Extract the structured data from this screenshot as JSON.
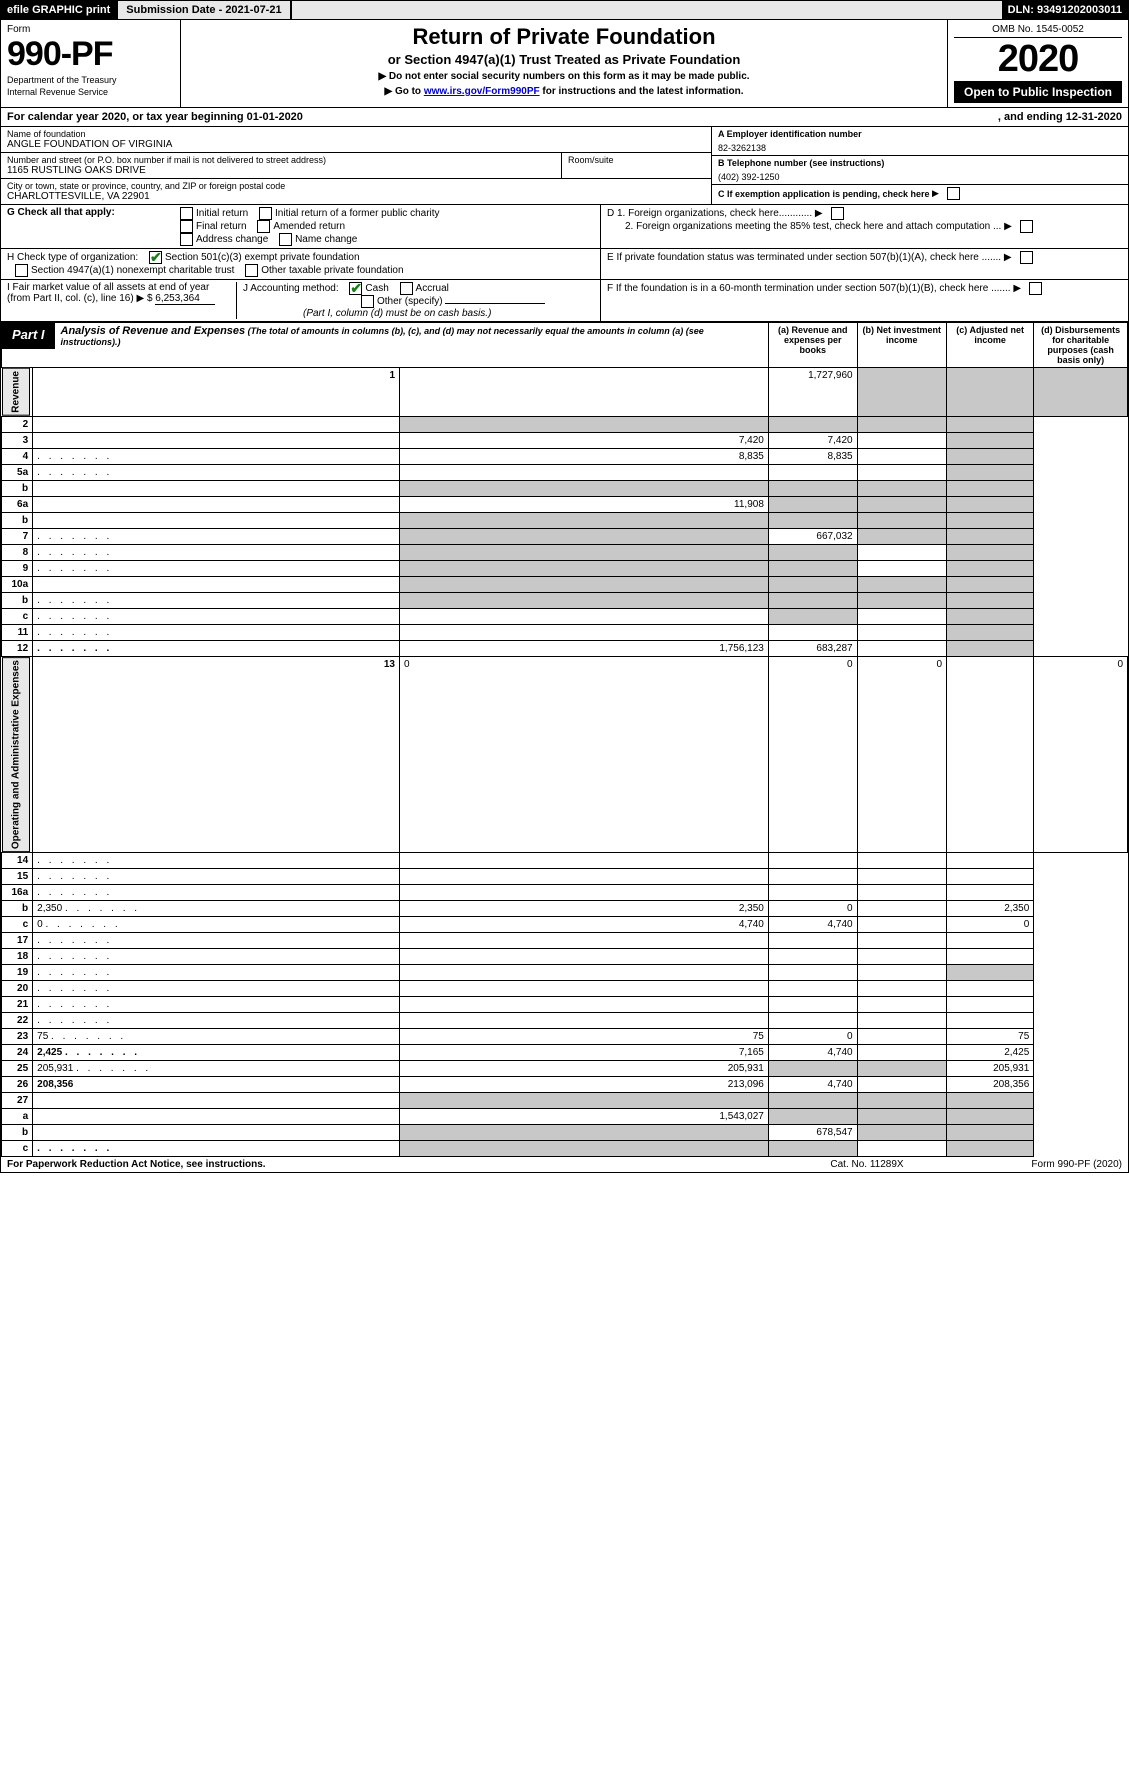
{
  "topbar": {
    "efile": "efile GRAPHIC print",
    "subdate_label": "Submission Date - 2021-07-21",
    "dln": "DLN: 93491202003011"
  },
  "header": {
    "form_word": "Form",
    "form_num": "990-PF",
    "dept1": "Department of the Treasury",
    "dept2": "Internal Revenue Service",
    "title": "Return of Private Foundation",
    "subtitle": "or Section 4947(a)(1) Trust Treated as Private Foundation",
    "notice1": "▶ Do not enter social security numbers on this form as it may be made public.",
    "notice2_pre": "▶ Go to ",
    "notice2_link": "www.irs.gov/Form990PF",
    "notice2_post": " for instructions and the latest information.",
    "omb": "OMB No. 1545-0052",
    "year": "2020",
    "openpub": "Open to Public Inspection"
  },
  "cal": {
    "pre": "For calendar year 2020, or tax year beginning 01-01-2020",
    "end": ", and ending 12-31-2020"
  },
  "name": {
    "label": "Name of foundation",
    "val": "ANGLE FOUNDATION OF VIRGINIA",
    "addr_label": "Number and street (or P.O. box number if mail is not delivered to street address)",
    "addr_val": "1165 RUSTLING OAKS DRIVE",
    "room_label": "Room/suite",
    "city_label": "City or town, state or province, country, and ZIP or foreign postal code",
    "city_val": "CHARLOTTESVILLE, VA  22901"
  },
  "right": {
    "a_label": "A Employer identification number",
    "a_val": "82-3262138",
    "b_label": "B Telephone number (see instructions)",
    "b_val": "(402) 392-1250",
    "c_label": "C If exemption application is pending, check here",
    "d1": "D 1. Foreign organizations, check here............",
    "d2": "2. Foreign organizations meeting the 85% test, check here and attach computation ...",
    "e": "E  If private foundation status was terminated under section 507(b)(1)(A), check here .......",
    "f": "F  If the foundation is in a 60-month termination under section 507(b)(1)(B), check here ......."
  },
  "g": {
    "label": "G Check all that apply:",
    "opts": [
      "Initial return",
      "Initial return of a former public charity",
      "Final return",
      "Amended return",
      "Address change",
      "Name change"
    ]
  },
  "h": {
    "label": "H Check type of organization:",
    "o1": "Section 501(c)(3) exempt private foundation",
    "o2": "Section 4947(a)(1) nonexempt charitable trust",
    "o3": "Other taxable private foundation"
  },
  "i": {
    "label": "I Fair market value of all assets at end of year (from Part II, col. (c), line 16) ▶ $ ",
    "val": "6,253,364"
  },
  "j": {
    "label": "J Accounting method:",
    "o1": "Cash",
    "o2": "Accrual",
    "o3": "Other (specify)",
    "note": "(Part I, column (d) must be on cash basis.)"
  },
  "part1": {
    "tag": "Part I",
    "title": "Analysis of Revenue and Expenses",
    "sub": " (The total of amounts in columns (b), (c), and (d) may not necessarily equal the amounts in column (a) (see instructions).)",
    "col_a": "(a)   Revenue and expenses per books",
    "col_b": "(b)  Net investment income",
    "col_c": "(c)  Adjusted net income",
    "col_d": "(d)  Disbursements for charitable purposes (cash basis only)"
  },
  "sides": {
    "rev": "Revenue",
    "exp": "Operating and Administrative Expenses"
  },
  "rows": [
    {
      "n": "1",
      "d": "",
      "a": "1,727,960",
      "b": "",
      "c": "",
      "sb": true,
      "sc": true,
      "sd": true
    },
    {
      "n": "2",
      "d": "",
      "a": "",
      "b": "",
      "c": "",
      "sa": true,
      "sb": true,
      "sc": true,
      "sd": true,
      "dots6": true
    },
    {
      "n": "3",
      "d": "",
      "a": "7,420",
      "b": "7,420",
      "c": "",
      "sd": true
    },
    {
      "n": "4",
      "d": "",
      "a": "8,835",
      "b": "8,835",
      "c": "",
      "dots": true,
      "sd": true
    },
    {
      "n": "5a",
      "d": "",
      "a": "",
      "b": "",
      "c": "",
      "dots": true,
      "sd": true
    },
    {
      "n": "b",
      "d": "",
      "a": "",
      "b": "",
      "c": "",
      "sa": true,
      "sb": true,
      "sc": true,
      "sd": true,
      "blank": true
    },
    {
      "n": "6a",
      "d": "",
      "a": "11,908",
      "b": "",
      "c": "",
      "sb": true,
      "sc": true,
      "sd": true
    },
    {
      "n": "b",
      "d": "",
      "a": "",
      "b": "",
      "c": "",
      "sa": true,
      "sb": true,
      "sc": true,
      "sd": true
    },
    {
      "n": "7",
      "d": "",
      "a": "",
      "b": "667,032",
      "c": "",
      "sa": true,
      "sc": true,
      "sd": true,
      "dots": true
    },
    {
      "n": "8",
      "d": "",
      "a": "",
      "b": "",
      "c": "",
      "dots": true,
      "sa": true,
      "sb": true,
      "sd": true
    },
    {
      "n": "9",
      "d": "",
      "a": "",
      "b": "",
      "c": "",
      "dots": true,
      "sa": true,
      "sb": true,
      "sd": true
    },
    {
      "n": "10a",
      "d": "",
      "a": "",
      "b": "",
      "c": "",
      "sa": true,
      "sb": true,
      "sc": true,
      "sd": true,
      "blank": true
    },
    {
      "n": "b",
      "d": "",
      "a": "",
      "b": "",
      "c": "",
      "sa": true,
      "sb": true,
      "sc": true,
      "sd": true,
      "dots": true,
      "blank": true
    },
    {
      "n": "c",
      "d": "",
      "a": "",
      "b": "",
      "c": "",
      "sb": true,
      "sd": true,
      "dots": true
    },
    {
      "n": "11",
      "d": "",
      "a": "",
      "b": "",
      "c": "",
      "dots": true,
      "sd": true
    },
    {
      "n": "12",
      "d": "",
      "a": "1,756,123",
      "b": "683,287",
      "c": "",
      "dots": true,
      "sd": true,
      "bold": true
    },
    {
      "n": "13",
      "d": "0",
      "a": "0",
      "b": "0",
      "c": ""
    },
    {
      "n": "14",
      "d": "",
      "a": "",
      "b": "",
      "c": "",
      "dots": true
    },
    {
      "n": "15",
      "d": "",
      "a": "",
      "b": "",
      "c": "",
      "dots": true
    },
    {
      "n": "16a",
      "d": "",
      "a": "",
      "b": "",
      "c": "",
      "dots": true
    },
    {
      "n": "b",
      "d": "2,350",
      "a": "2,350",
      "b": "0",
      "c": "",
      "dots": true
    },
    {
      "n": "c",
      "d": "0",
      "a": "4,740",
      "b": "4,740",
      "c": "",
      "dots": true
    },
    {
      "n": "17",
      "d": "",
      "a": "",
      "b": "",
      "c": "",
      "dots": true
    },
    {
      "n": "18",
      "d": "",
      "a": "",
      "b": "",
      "c": "",
      "dots": true
    },
    {
      "n": "19",
      "d": "",
      "a": "",
      "b": "",
      "c": "",
      "dots": true,
      "sd": true
    },
    {
      "n": "20",
      "d": "",
      "a": "",
      "b": "",
      "c": "",
      "dots": true
    },
    {
      "n": "21",
      "d": "",
      "a": "",
      "b": "",
      "c": "",
      "dots": true
    },
    {
      "n": "22",
      "d": "",
      "a": "",
      "b": "",
      "c": "",
      "dots": true
    },
    {
      "n": "23",
      "d": "75",
      "a": "75",
      "b": "0",
      "c": "",
      "dots": true
    },
    {
      "n": "24",
      "d": "2,425",
      "a": "7,165",
      "b": "4,740",
      "c": "",
      "dots": true,
      "bold": true
    },
    {
      "n": "25",
      "d": "205,931",
      "a": "205,931",
      "b": "",
      "c": "",
      "dots": true,
      "sb": true,
      "sc": true
    },
    {
      "n": "26",
      "d": "208,356",
      "a": "213,096",
      "b": "4,740",
      "c": "",
      "bold": true
    },
    {
      "n": "27",
      "d": "",
      "a": "",
      "b": "",
      "c": "",
      "sa": true,
      "sb": true,
      "sc": true,
      "sd": true
    },
    {
      "n": "a",
      "d": "",
      "a": "1,543,027",
      "b": "",
      "c": "",
      "sb": true,
      "sc": true,
      "sd": true,
      "bold": true
    },
    {
      "n": "b",
      "d": "",
      "a": "",
      "b": "678,547",
      "c": "",
      "sa": true,
      "sc": true,
      "sd": true,
      "bold": true
    },
    {
      "n": "c",
      "d": "",
      "a": "",
      "b": "",
      "c": "",
      "sa": true,
      "sb": true,
      "sd": true,
      "dots": true,
      "bold": true
    }
  ],
  "footer": {
    "l": "For Paperwork Reduction Act Notice, see instructions.",
    "m": "Cat. No. 11289X",
    "r": "Form 990-PF (2020)"
  }
}
